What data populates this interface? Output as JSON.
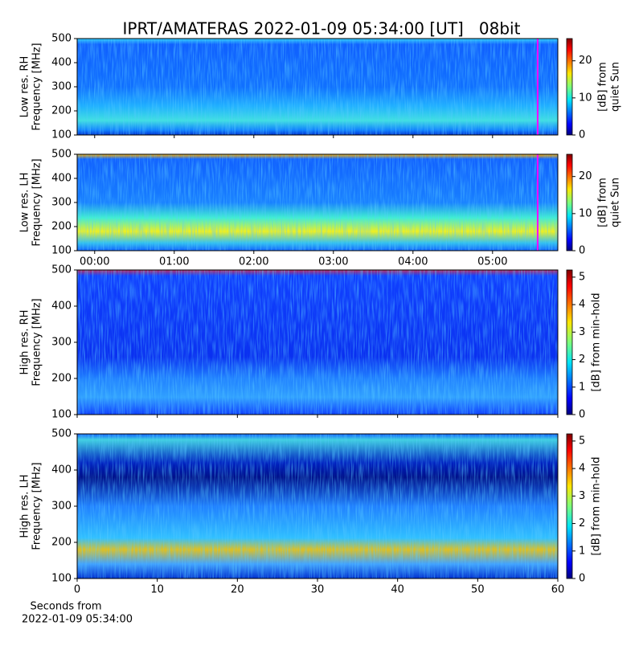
{
  "title": "IPRT/AMATERAS 2022-01-09 05:34:00 [UT]   08bit",
  "chart_data": [
    {
      "type": "spectrogram",
      "ylabel": [
        "Low res. RH",
        "Frequency [MHz]"
      ],
      "xlim": [
        -0.22,
        5.82
      ],
      "xticks": [
        0,
        1,
        2,
        3,
        4,
        5
      ],
      "ylim": [
        100,
        500
      ],
      "yticks": [
        100,
        200,
        300,
        400,
        500
      ],
      "marker_x": 5.5667,
      "marker_color": "#ff00ff",
      "clim": [
        0,
        26
      ],
      "cticks": [
        0,
        10,
        20
      ],
      "clabel": [
        "[dB] from",
        "quiet Sun"
      ]
    },
    {
      "type": "spectrogram",
      "ylabel": [
        "Low res. LH",
        "Frequency [MHz]"
      ],
      "xlim": [
        -0.22,
        5.82
      ],
      "xticks": [
        {
          "value": 0,
          "label": "00:00"
        },
        {
          "value": 1,
          "label": "01:00"
        },
        {
          "value": 2,
          "label": "02:00"
        },
        {
          "value": 3,
          "label": "03:00"
        },
        {
          "value": 4,
          "label": "04:00"
        },
        {
          "value": 5,
          "label": "05:00"
        }
      ],
      "ylim": [
        100,
        500
      ],
      "yticks": [
        100,
        200,
        300,
        400,
        500
      ],
      "marker_x": 5.5667,
      "marker_color": "#ff00ff",
      "clim": [
        0,
        26
      ],
      "cticks": [
        0,
        10,
        20
      ],
      "clabel": [
        "[dB] from",
        "quiet Sun"
      ]
    },
    {
      "type": "spectrogram",
      "ylabel": [
        "High res. RH",
        "Frequency [MHz]"
      ],
      "xlim": [
        0,
        60
      ],
      "xticks": [
        0,
        10,
        20,
        30,
        40,
        50,
        60
      ],
      "ylim": [
        100,
        500
      ],
      "yticks": [
        100,
        200,
        300,
        400,
        500
      ],
      "clim": [
        0,
        5.26
      ],
      "cticks": [
        0,
        1,
        2,
        3,
        4,
        5
      ],
      "clabel": [
        "[dB] from min-hold"
      ]
    },
    {
      "type": "spectrogram",
      "ylabel": [
        "High res. LH",
        "Frequency [MHz]"
      ],
      "xlim": [
        0,
        60
      ],
      "xticks": [
        0,
        10,
        20,
        30,
        40,
        50,
        60
      ],
      "ylim": [
        100,
        500
      ],
      "yticks": [
        100,
        200,
        300,
        400,
        500
      ],
      "clim": [
        0,
        5.26
      ],
      "cticks": [
        0,
        1,
        2,
        3,
        4,
        5
      ],
      "clabel": [
        "[dB] from min-hold"
      ],
      "xlabel": [
        "Seconds from",
        "2022-01-09 05:34:00"
      ]
    }
  ]
}
